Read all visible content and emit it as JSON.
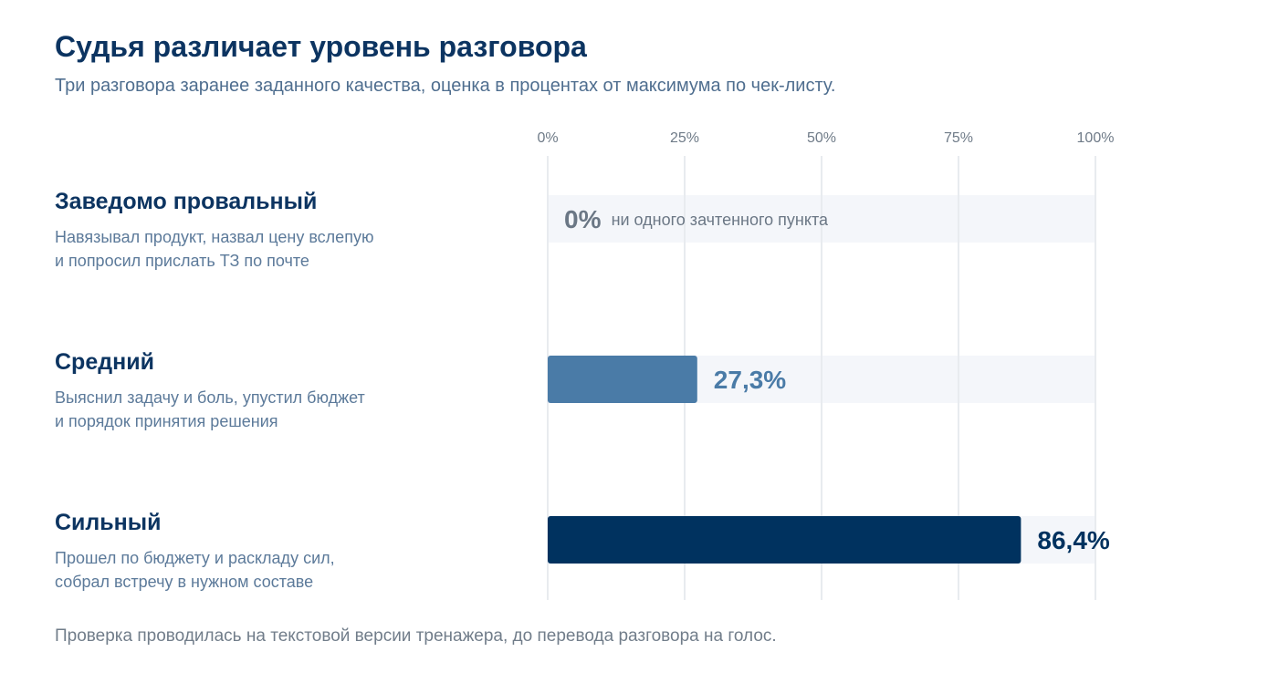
{
  "title": "Судья различает уровень разговора",
  "subtitle": "Три разговора заранее заданного качества, оценка в процентах от максимума по чек-листу.",
  "rows": [
    {
      "title": "Заведомо провальный",
      "desc": [
        "Навязывал продукт, назвал цену вслепую",
        "и попросил прислать ТЗ по почте"
      ]
    },
    {
      "title": "Средний",
      "desc": [
        "Выяснил задачу и боль, упустил бюджет",
        "и порядок принятия решения"
      ]
    },
    {
      "title": "Сильный",
      "desc": [
        "Прошел по бюджету и раскладу сил,",
        "собрал встречу в нужном составе"
      ]
    }
  ],
  "footnote": "Проверка проводилась на текстовой версии тренажера, до перевода разговора на голос.",
  "colors": {
    "title": "#0c3461",
    "medium": "#4a7ba7",
    "strong": "#00325f",
    "fail": "#6b7785",
    "track": "#f4f6fa",
    "grid": "#e8ebef"
  },
  "chart_data": {
    "type": "bar",
    "orientation": "horizontal",
    "categories": [
      "Заведомо провальный",
      "Средний",
      "Сильный"
    ],
    "values": [
      0,
      27.3,
      86.4
    ],
    "value_labels": [
      "0%",
      "27,3%",
      "86,4%"
    ],
    "annotations": [
      "ни одного зачтенного пункта",
      "",
      ""
    ],
    "xlim": [
      0,
      100
    ],
    "xticks": [
      0,
      25,
      50,
      75,
      100
    ],
    "xtick_labels": [
      "0%",
      "25%",
      "50%",
      "75%",
      "100%"
    ],
    "grid": true
  }
}
